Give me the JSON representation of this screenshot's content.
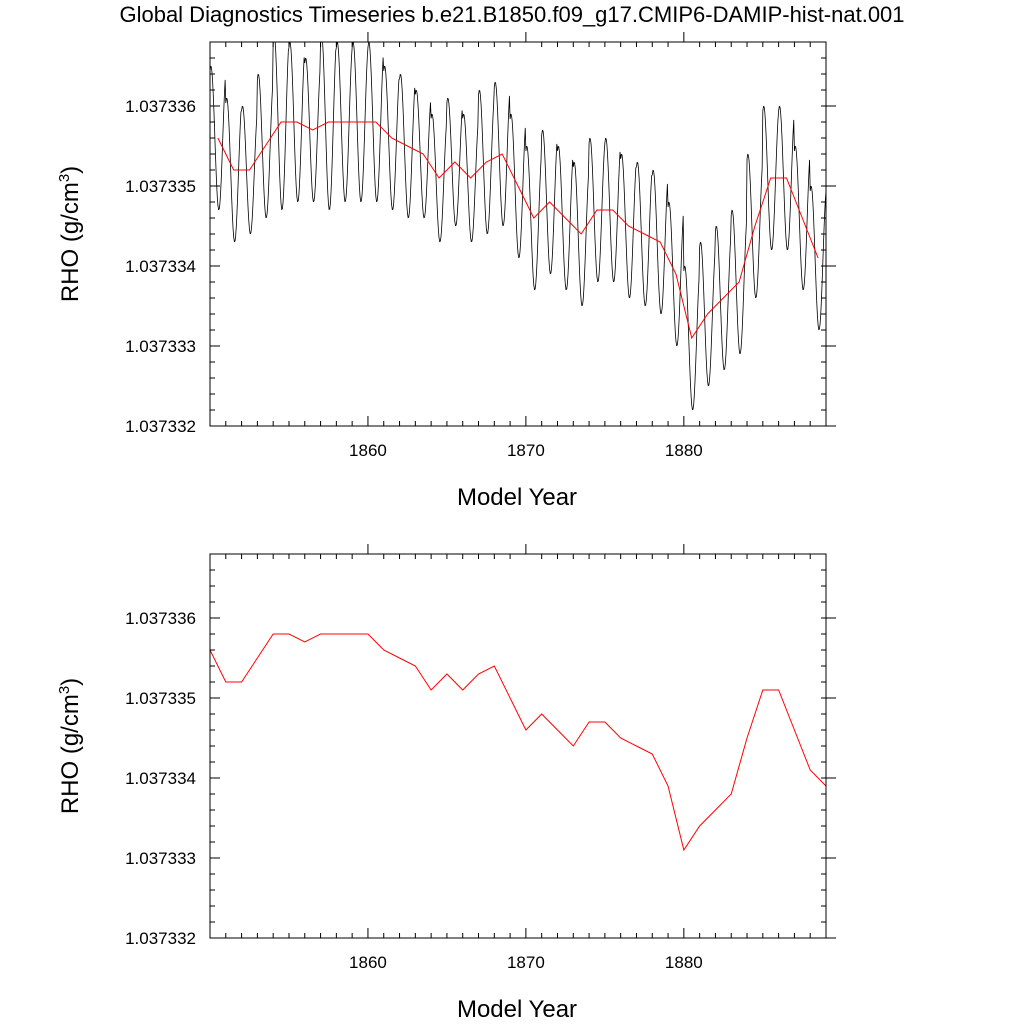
{
  "title": "Global Diagnostics Timeseries b.e21.B1850.f09_g17.CMIP6-DAMIP-hist-nat.001",
  "colors": {
    "monthly": "#000000",
    "annual": "#ff0000",
    "axes": "#000000"
  },
  "chart_data": [
    {
      "type": "line",
      "xlabel": "Model Year",
      "ylabel_main": "RHO (g/cm",
      "ylabel_sup": "3",
      "ylabel_close": ")",
      "xlim": [
        1850,
        1889
      ],
      "ylim": [
        1.037332,
        1.0373368
      ],
      "x_ticks": [
        1860,
        1870,
        1880
      ],
      "y_ticks": [
        1.037332,
        1.037333,
        1.037334,
        1.037335,
        1.037336
      ],
      "y_tick_labels": [
        "1.037332",
        "1.037333",
        "1.037334",
        "1.037335",
        "1.037336"
      ],
      "series": [
        {
          "key": "monthly",
          "style": "seasonal",
          "x_start": 1850,
          "x_end": 1889,
          "period": 1,
          "center": [
            1.0373356,
            1.0373352,
            1.0373352,
            1.0373355,
            1.0373358,
            1.0373358,
            1.0373357,
            1.0373358,
            1.0373358,
            1.0373358,
            1.0373358,
            1.0373356,
            1.0373355,
            1.0373354,
            1.0373351,
            1.0373353,
            1.0373351,
            1.0373353,
            1.0373354,
            1.037335,
            1.0373346,
            1.0373348,
            1.0373346,
            1.0373344,
            1.0373347,
            1.0373347,
            1.0373345,
            1.0373344,
            1.0373343,
            1.0373339,
            1.0373331,
            1.0373334,
            1.0373336,
            1.0373338,
            1.0373345,
            1.0373351,
            1.0373351,
            1.0373346,
            1.0373341
          ],
          "amplitude": [
            9e-07,
            9e-07,
            8e-07,
            9e-07,
            1.1e-06,
            1e-06,
            9e-07,
            1.1e-06,
            1e-06,
            1e-06,
            1e-06,
            9e-07,
            9e-07,
            8e-07,
            8e-07,
            8e-07,
            8e-07,
            9e-07,
            9e-07,
            9e-07,
            9e-07,
            9e-07,
            9e-07,
            9e-07,
            9e-07,
            9e-07,
            9e-07,
            9e-07,
            9e-07,
            9e-07,
            9e-07,
            9e-07,
            9e-07,
            9e-07,
            9e-07,
            9e-07,
            9e-07,
            9e-07,
            9e-07
          ]
        },
        {
          "key": "annual",
          "x": [
            1850.5,
            1851.5,
            1852.5,
            1853.5,
            1854.5,
            1855.5,
            1856.5,
            1857.5,
            1858.5,
            1859.5,
            1860.5,
            1861.5,
            1862.5,
            1863.5,
            1864.5,
            1865.5,
            1866.5,
            1867.5,
            1868.5,
            1869.5,
            1870.5,
            1871.5,
            1872.5,
            1873.5,
            1874.5,
            1875.5,
            1876.5,
            1877.5,
            1878.5,
            1879.5,
            1880.5,
            1881.5,
            1882.5,
            1883.5,
            1884.5,
            1885.5,
            1886.5,
            1887.5,
            1888.5
          ],
          "y": [
            1.0373356,
            1.0373352,
            1.0373352,
            1.0373355,
            1.0373358,
            1.0373358,
            1.0373357,
            1.0373358,
            1.0373358,
            1.0373358,
            1.0373358,
            1.0373356,
            1.0373355,
            1.0373354,
            1.0373351,
            1.0373353,
            1.0373351,
            1.0373353,
            1.0373354,
            1.037335,
            1.0373346,
            1.0373348,
            1.0373346,
            1.0373344,
            1.0373347,
            1.0373347,
            1.0373345,
            1.0373344,
            1.0373343,
            1.0373339,
            1.0373331,
            1.0373334,
            1.0373336,
            1.0373338,
            1.0373345,
            1.0373351,
            1.0373351,
            1.0373346,
            1.0373341
          ]
        }
      ]
    },
    {
      "type": "line",
      "xlabel": "Model Year",
      "ylabel_main": "RHO (g/cm",
      "ylabel_sup": "3",
      "ylabel_close": ")",
      "xlim": [
        1850,
        1889
      ],
      "ylim": [
        1.037332,
        1.0373368
      ],
      "x_ticks": [
        1860,
        1870,
        1880
      ],
      "y_ticks": [
        1.037332,
        1.037333,
        1.037334,
        1.037335,
        1.037336
      ],
      "y_tick_labels": [
        "1.037332",
        "1.037333",
        "1.037334",
        "1.037335",
        "1.037336"
      ],
      "series": [
        {
          "key": "annual",
          "x": [
            1850,
            1851,
            1852,
            1853,
            1854,
            1855,
            1856,
            1857,
            1858,
            1859,
            1860,
            1861,
            1862,
            1863,
            1864,
            1865,
            1866,
            1867,
            1868,
            1869,
            1870,
            1871,
            1872,
            1873,
            1874,
            1875,
            1876,
            1877,
            1878,
            1879,
            1880,
            1881,
            1882,
            1883,
            1884,
            1885,
            1886,
            1887,
            1888,
            1889
          ],
          "y": [
            1.0373356,
            1.0373352,
            1.0373352,
            1.0373355,
            1.0373358,
            1.0373358,
            1.0373357,
            1.0373358,
            1.0373358,
            1.0373358,
            1.0373358,
            1.0373356,
            1.0373355,
            1.0373354,
            1.0373351,
            1.0373353,
            1.0373351,
            1.0373353,
            1.0373354,
            1.037335,
            1.0373346,
            1.0373348,
            1.0373346,
            1.0373344,
            1.0373347,
            1.0373347,
            1.0373345,
            1.0373344,
            1.0373343,
            1.0373339,
            1.0373331,
            1.0373334,
            1.0373336,
            1.0373338,
            1.0373345,
            1.0373351,
            1.0373351,
            1.0373346,
            1.0373341,
            1.0373339
          ]
        }
      ]
    }
  ]
}
